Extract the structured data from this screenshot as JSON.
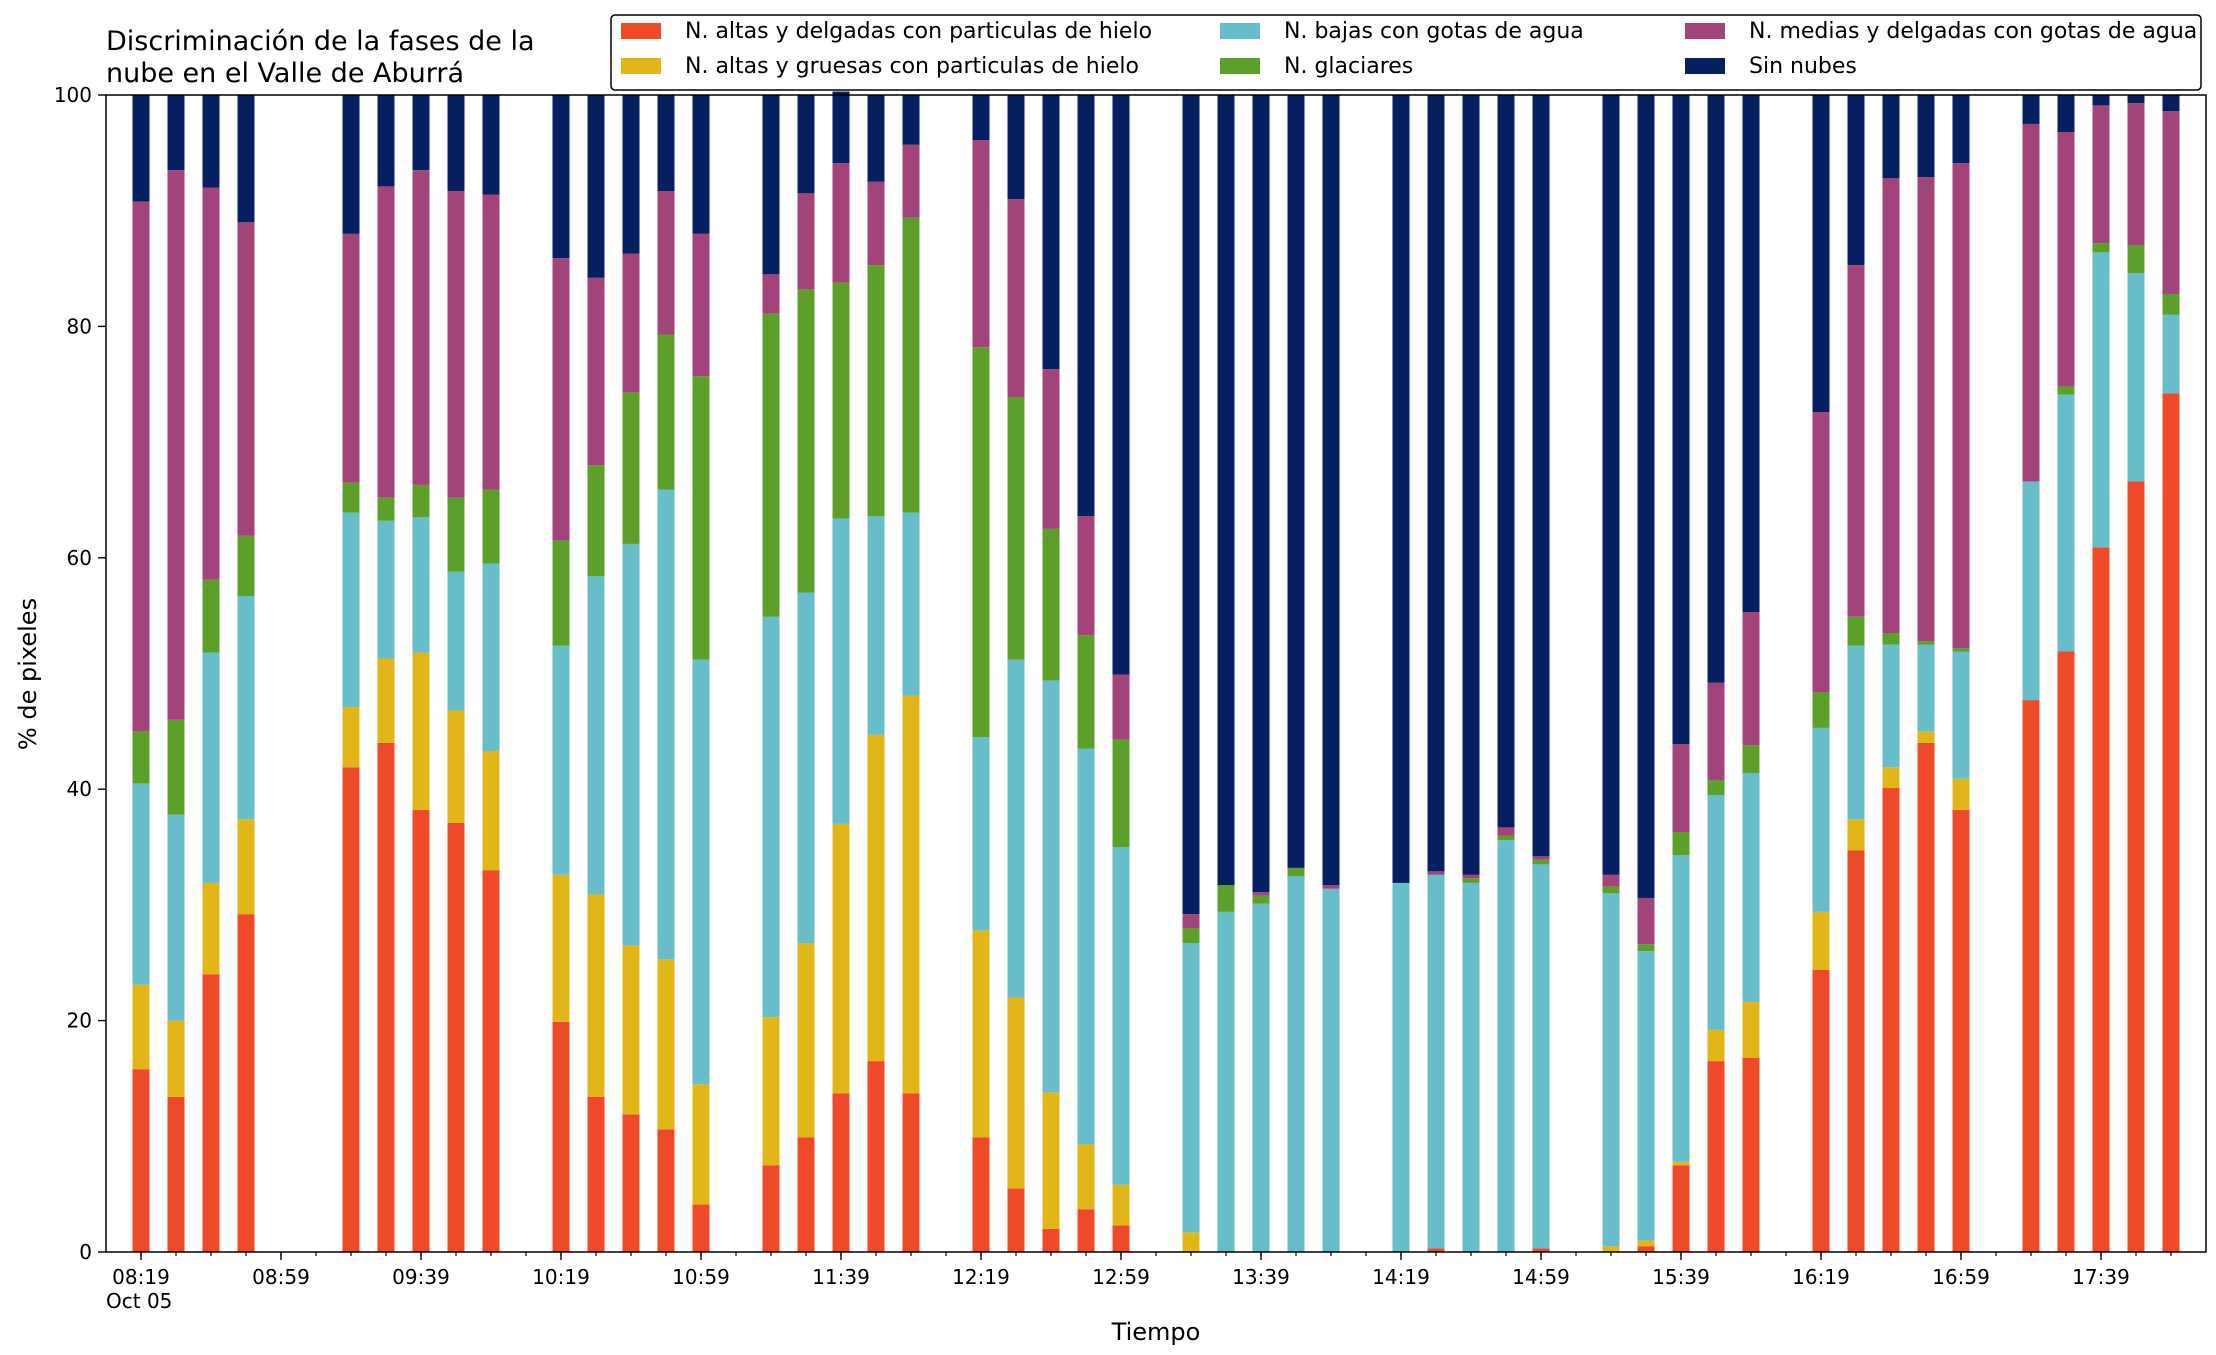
{
  "chart_data": {
    "type": "bar",
    "stacked": true,
    "title": [
      "Discriminación de la fases de la",
      "nube en el Valle de Aburrá"
    ],
    "xlabel": "Tiempo",
    "ylabel": "% de pixeles",
    "ylim": [
      0,
      100
    ],
    "yticks": [
      0,
      20,
      40,
      60,
      80,
      100
    ],
    "xlim": [
      "08:09",
      "18:09"
    ],
    "xticks": [
      {
        "time": "08:19",
        "label": "08:19",
        "sublabel": "Oct 05"
      },
      {
        "time": "08:59",
        "label": "08:59"
      },
      {
        "time": "09:39",
        "label": "09:39"
      },
      {
        "time": "10:19",
        "label": "10:19"
      },
      {
        "time": "10:59",
        "label": "10:59"
      },
      {
        "time": "11:39",
        "label": "11:39"
      },
      {
        "time": "12:19",
        "label": "12:19"
      },
      {
        "time": "12:59",
        "label": "12:59"
      },
      {
        "time": "13:39",
        "label": "13:39"
      },
      {
        "time": "14:19",
        "label": "14:19"
      },
      {
        "time": "14:59",
        "label": "14:59"
      },
      {
        "time": "15:39",
        "label": "15:39"
      },
      {
        "time": "16:19",
        "label": "16:19"
      },
      {
        "time": "16:59",
        "label": "16:59"
      },
      {
        "time": "17:39",
        "label": "17:39"
      }
    ],
    "grid": false,
    "legend_position": "top-right",
    "legend_columns": 3,
    "x": [
      "08:19",
      "08:29",
      "08:39",
      "08:49",
      "09:19",
      "09:29",
      "09:39",
      "09:49",
      "09:59",
      "10:19",
      "10:29",
      "10:39",
      "10:49",
      "10:59",
      "11:19",
      "11:29",
      "11:39",
      "11:49",
      "11:59",
      "12:19",
      "12:29",
      "12:39",
      "12:49",
      "12:59",
      "13:19",
      "13:29",
      "13:39",
      "13:49",
      "13:59",
      "14:19",
      "14:29",
      "14:39",
      "14:49",
      "14:59",
      "15:19",
      "15:29",
      "15:39",
      "15:49",
      "15:59",
      "16:19",
      "16:29",
      "16:39",
      "16:49",
      "16:59",
      "17:19",
      "17:29",
      "17:39",
      "17:49",
      "17:59"
    ],
    "series": [
      {
        "name": "N. altas y delgadas con particulas de hielo",
        "color": "#ee4a2a",
        "values": [
          15.8,
          13.4,
          24.0,
          29.2,
          41.9,
          44.0,
          38.2,
          37.1,
          33.0,
          19.9,
          13.4,
          11.9,
          10.6,
          4.1,
          7.5,
          9.9,
          13.7,
          16.5,
          13.7,
          9.9,
          5.5,
          2.0,
          3.7,
          2.3,
          0.0,
          0.0,
          0.0,
          0.0,
          0.0,
          0.0,
          0.3,
          0.0,
          0.0,
          0.3,
          0.0,
          0.5,
          7.5,
          16.5,
          16.8,
          24.4,
          34.7,
          40.1,
          44.0,
          38.2,
          47.7,
          51.9,
          60.9,
          66.6,
          74.2
        ]
      },
      {
        "name": "N. altas y gruesas con particulas de hielo",
        "color": "#e2b619",
        "values": [
          7.3,
          6.6,
          7.9,
          8.2,
          5.2,
          7.3,
          13.6,
          9.7,
          10.3,
          12.7,
          17.5,
          14.6,
          14.7,
          10.4,
          12.8,
          16.8,
          23.3,
          28.2,
          34.4,
          17.9,
          16.5,
          11.8,
          5.6,
          3.5,
          1.7,
          0.0,
          0.0,
          0.0,
          0.0,
          0.0,
          0.0,
          0.0,
          0.0,
          0.0,
          0.5,
          0.5,
          0.3,
          2.7,
          4.8,
          5.0,
          2.7,
          1.8,
          1.0,
          2.7,
          0.0,
          0.0,
          0.0,
          0.0,
          0.0
        ]
      },
      {
        "name": "N. bajas con gotas de agua",
        "color": "#68bdca",
        "values": [
          17.4,
          17.8,
          19.9,
          19.3,
          16.8,
          11.9,
          11.7,
          12.0,
          16.2,
          19.8,
          27.5,
          34.7,
          40.6,
          36.7,
          34.6,
          30.3,
          26.4,
          18.9,
          15.8,
          16.7,
          29.2,
          35.6,
          34.2,
          29.2,
          25.0,
          29.4,
          30.1,
          32.5,
          31.4,
          31.9,
          32.3,
          31.9,
          35.6,
          33.2,
          30.5,
          25.0,
          26.5,
          20.3,
          19.8,
          15.9,
          15.0,
          10.6,
          7.5,
          11.0,
          18.9,
          22.2,
          25.5,
          18.0,
          6.8
        ]
      },
      {
        "name": "N. glaciares",
        "color": "#5c9f2b",
        "values": [
          4.5,
          8.2,
          6.3,
          5.2,
          2.6,
          2.0,
          2.8,
          6.4,
          6.4,
          9.1,
          9.6,
          13.1,
          13.4,
          24.5,
          26.2,
          26.2,
          20.4,
          21.7,
          25.5,
          33.7,
          22.7,
          13.1,
          9.8,
          9.3,
          1.3,
          2.3,
          0.7,
          0.7,
          0.0,
          0.0,
          0.0,
          0.4,
          0.4,
          0.4,
          0.6,
          0.6,
          2.0,
          1.3,
          2.4,
          3.1,
          2.5,
          1.0,
          0.3,
          0.3,
          0.0,
          0.7,
          0.8,
          2.4,
          1.8
        ]
      },
      {
        "name": "N. medias y delgadas con gotas de agua",
        "color": "#a2447a",
        "values": [
          45.8,
          47.5,
          33.9,
          27.1,
          21.5,
          26.9,
          27.2,
          26.5,
          25.5,
          24.4,
          16.2,
          12.0,
          12.4,
          12.3,
          3.4,
          8.3,
          10.3,
          7.2,
          6.3,
          17.9,
          17.1,
          13.8,
          10.3,
          5.6,
          1.2,
          0.0,
          0.3,
          0.0,
          0.3,
          0.0,
          0.3,
          0.3,
          0.7,
          0.3,
          1.0,
          4.0,
          7.6,
          8.4,
          11.5,
          24.2,
          30.4,
          39.3,
          40.1,
          41.9,
          30.9,
          22.0,
          11.9,
          12.3,
          15.8
        ]
      },
      {
        "name": "Sin nubes",
        "color": "#061f61",
        "values": [
          9.2,
          6.5,
          8.0,
          11.0,
          12.0,
          7.9,
          6.5,
          8.3,
          8.6,
          14.1,
          15.8,
          13.7,
          8.3,
          12.0,
          15.5,
          8.5,
          6.2,
          7.5,
          4.3,
          3.9,
          9.0,
          23.7,
          36.4,
          50.1,
          70.8,
          68.3,
          68.9,
          66.8,
          68.3,
          68.1,
          67.1,
          67.4,
          63.3,
          65.8,
          67.4,
          69.4,
          56.1,
          50.8,
          44.7,
          27.4,
          14.7,
          7.2,
          7.1,
          5.9,
          2.5,
          3.2,
          0.9,
          0.7,
          1.4
        ]
      }
    ]
  }
}
